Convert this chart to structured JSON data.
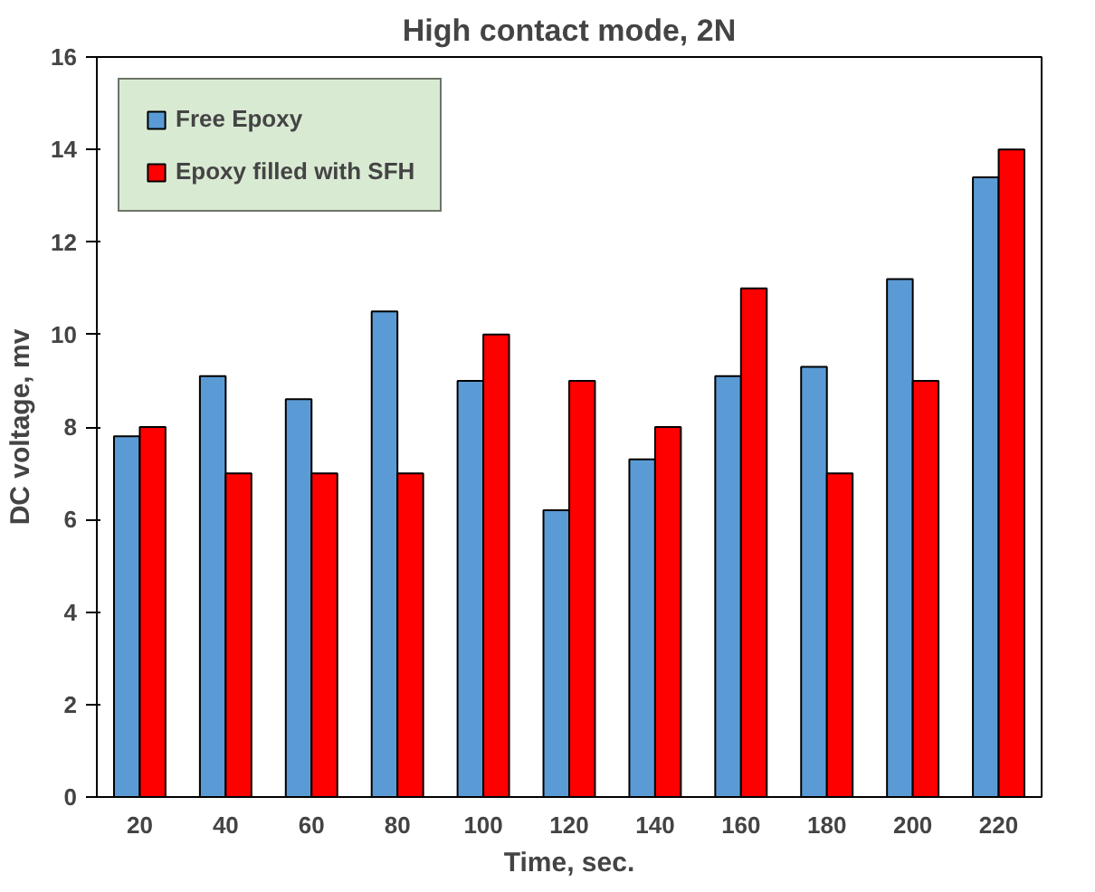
{
  "chart_data": {
    "type": "bar",
    "title": "High contact mode, 2N",
    "xlabel": "Time, sec.",
    "ylabel": "DC voltage, mv",
    "categories": [
      "20",
      "40",
      "60",
      "80",
      "100",
      "120",
      "140",
      "160",
      "180",
      "200",
      "220"
    ],
    "series": [
      {
        "name": "Free Epoxy",
        "color": "#5b9bd5",
        "values": [
          7.8,
          9.1,
          8.6,
          10.5,
          9.0,
          6.2,
          7.3,
          9.1,
          9.3,
          11.2,
          13.4
        ]
      },
      {
        "name": "Epoxy filled with SFH",
        "color": "#ff0000",
        "values": [
          8,
          7,
          7,
          7,
          10,
          9,
          8,
          11,
          7,
          9,
          14
        ]
      }
    ],
    "ylim": [
      0,
      16
    ],
    "yticks": [
      0,
      2,
      4,
      6,
      8,
      10,
      12,
      14,
      16
    ],
    "grid": false,
    "legend": "top left"
  }
}
